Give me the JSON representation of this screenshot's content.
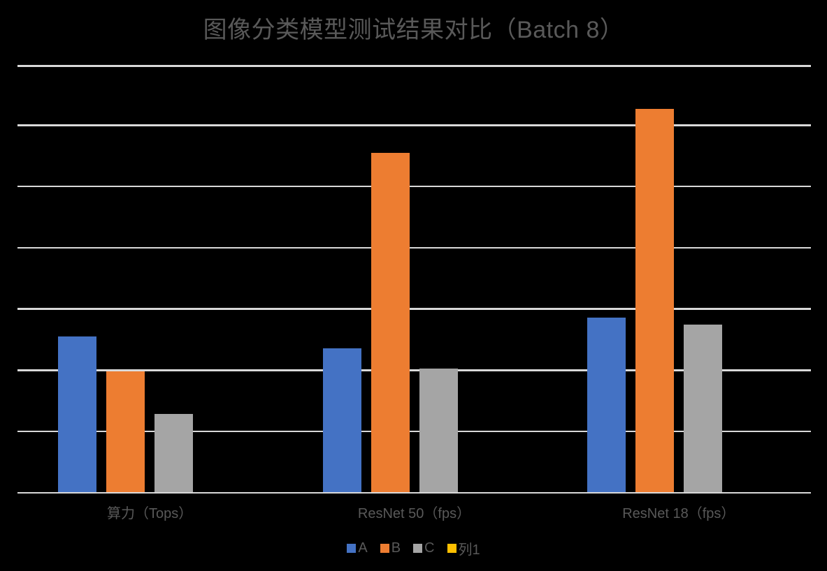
{
  "colors": {
    "background": "#000000",
    "text": "#595959",
    "gridline": "#D9D9D9",
    "series_a": "#4472C4",
    "series_b": "#ED7D31",
    "series_c": "#A5A5A5",
    "series_col1": "#FFC000"
  },
  "chart_data": {
    "type": "bar",
    "title": "图像分类模型测试结果对比（Batch 8）",
    "xlabel": "",
    "ylabel": "",
    "categories": [
      "算力（Tops）",
      "ResNet 50（fps）",
      "ResNet 18（fps）"
    ],
    "series": [
      {
        "name": "A",
        "color": "#4472C4",
        "values": [
          257,
          237,
          287
        ]
      },
      {
        "name": "B",
        "color": "#ED7D31",
        "values": [
          200,
          556,
          628
        ]
      },
      {
        "name": "C",
        "color": "#A5A5A5",
        "values": [
          130,
          204,
          276
        ]
      },
      {
        "name": "列1",
        "color": "#FFC000",
        "values": [
          0,
          0,
          0
        ]
      }
    ],
    "ylim": [
      0,
      700
    ],
    "gridline_step": 100,
    "grid": true,
    "y_axis_tick_labels_visible": false,
    "legend_position": "bottom",
    "legend_items": [
      {
        "label": "A",
        "color": "#4472C4"
      },
      {
        "label": "B",
        "color": "#ED7D31"
      },
      {
        "label": "C",
        "color": "#A5A5A5"
      },
      {
        "label": "列1",
        "color": "#FFC000"
      }
    ]
  }
}
